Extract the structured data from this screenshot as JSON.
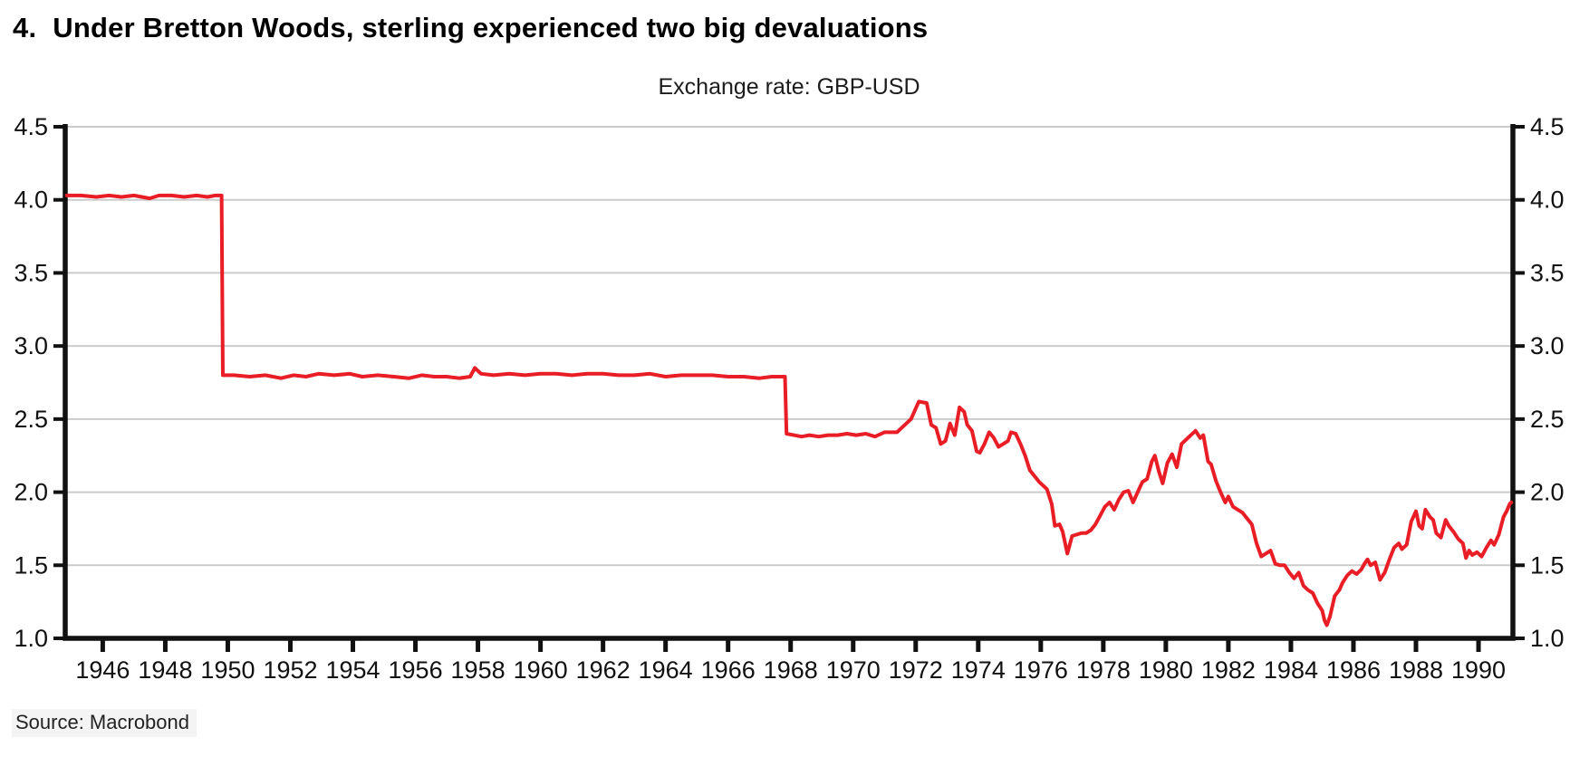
{
  "page": {
    "title_number": "4.",
    "title_text": "Under Bretton Woods, sterling experienced two big devaluations",
    "source": "Source: Macrobond"
  },
  "chart_data": {
    "type": "line",
    "title": "Exchange rate: GBP-USD",
    "xlabel": "",
    "ylabel": "",
    "xlim": [
      1944.8,
      1991.1
    ],
    "ylim": [
      1.0,
      4.5
    ],
    "grid": "horizontal",
    "legend": false,
    "colors": {
      "line": "#e91d25",
      "axis": "#111111",
      "gridline": "#cbcbcb",
      "tick_text": "#111111"
    },
    "x_tick_labels": [
      "1946",
      "1948",
      "1950",
      "1952",
      "1954",
      "1956",
      "1958",
      "1960",
      "1962",
      "1964",
      "1966",
      "1968",
      "1970",
      "1972",
      "1974",
      "1976",
      "1978",
      "1980",
      "1982",
      "1984",
      "1986",
      "1988",
      "1990"
    ],
    "x_ticks": [
      1946,
      1948,
      1950,
      1952,
      1954,
      1956,
      1958,
      1960,
      1962,
      1964,
      1966,
      1968,
      1970,
      1972,
      1974,
      1976,
      1978,
      1980,
      1982,
      1984,
      1986,
      1988,
      1990
    ],
    "y_tick_labels": [
      "4.5",
      "4.0",
      "3.5",
      "3.0",
      "2.5",
      "2.0",
      "1.5",
      "1.0"
    ],
    "y_ticks": [
      4.5,
      4.0,
      3.5,
      3.0,
      2.5,
      2.0,
      1.5,
      1.0
    ],
    "series": [
      {
        "name": "GBP-USD exchange rate",
        "color": "#e91d25",
        "points": [
          [
            1944.85,
            4.03
          ],
          [
            1945.3,
            4.03
          ],
          [
            1945.8,
            4.02
          ],
          [
            1946.2,
            4.03
          ],
          [
            1946.6,
            4.02
          ],
          [
            1947.0,
            4.03
          ],
          [
            1947.5,
            4.01
          ],
          [
            1947.8,
            4.03
          ],
          [
            1948.2,
            4.03
          ],
          [
            1948.6,
            4.02
          ],
          [
            1949.0,
            4.03
          ],
          [
            1949.35,
            4.02
          ],
          [
            1949.6,
            4.03
          ],
          [
            1949.8,
            4.03
          ],
          [
            1949.84,
            2.8
          ],
          [
            1950.2,
            2.8
          ],
          [
            1950.7,
            2.79
          ],
          [
            1951.2,
            2.8
          ],
          [
            1951.7,
            2.78
          ],
          [
            1952.1,
            2.8
          ],
          [
            1952.5,
            2.79
          ],
          [
            1952.9,
            2.81
          ],
          [
            1953.4,
            2.8
          ],
          [
            1953.9,
            2.81
          ],
          [
            1954.3,
            2.79
          ],
          [
            1954.8,
            2.8
          ],
          [
            1955.3,
            2.79
          ],
          [
            1955.8,
            2.78
          ],
          [
            1956.2,
            2.8
          ],
          [
            1956.6,
            2.79
          ],
          [
            1957.0,
            2.79
          ],
          [
            1957.4,
            2.78
          ],
          [
            1957.75,
            2.79
          ],
          [
            1957.9,
            2.85
          ],
          [
            1958.1,
            2.81
          ],
          [
            1958.5,
            2.8
          ],
          [
            1959.0,
            2.81
          ],
          [
            1959.5,
            2.8
          ],
          [
            1960.0,
            2.81
          ],
          [
            1960.5,
            2.81
          ],
          [
            1961.0,
            2.8
          ],
          [
            1961.5,
            2.81
          ],
          [
            1962.0,
            2.81
          ],
          [
            1962.5,
            2.8
          ],
          [
            1963.0,
            2.8
          ],
          [
            1963.5,
            2.81
          ],
          [
            1964.0,
            2.79
          ],
          [
            1964.5,
            2.8
          ],
          [
            1965.0,
            2.8
          ],
          [
            1965.5,
            2.8
          ],
          [
            1966.0,
            2.79
          ],
          [
            1966.5,
            2.79
          ],
          [
            1967.0,
            2.78
          ],
          [
            1967.4,
            2.79
          ],
          [
            1967.82,
            2.79
          ],
          [
            1967.87,
            2.4
          ],
          [
            1968.1,
            2.39
          ],
          [
            1968.35,
            2.38
          ],
          [
            1968.6,
            2.39
          ],
          [
            1968.9,
            2.38
          ],
          [
            1969.2,
            2.39
          ],
          [
            1969.5,
            2.39
          ],
          [
            1969.8,
            2.4
          ],
          [
            1970.1,
            2.39
          ],
          [
            1970.4,
            2.4
          ],
          [
            1970.7,
            2.38
          ],
          [
            1971.0,
            2.41
          ],
          [
            1971.4,
            2.41
          ],
          [
            1971.7,
            2.47
          ],
          [
            1971.85,
            2.5
          ],
          [
            1972.1,
            2.62
          ],
          [
            1972.35,
            2.61
          ],
          [
            1972.5,
            2.46
          ],
          [
            1972.65,
            2.44
          ],
          [
            1972.8,
            2.33
          ],
          [
            1972.95,
            2.35
          ],
          [
            1973.1,
            2.47
          ],
          [
            1973.25,
            2.39
          ],
          [
            1973.4,
            2.58
          ],
          [
            1973.55,
            2.55
          ],
          [
            1973.65,
            2.46
          ],
          [
            1973.8,
            2.42
          ],
          [
            1973.95,
            2.28
          ],
          [
            1974.05,
            2.27
          ],
          [
            1974.2,
            2.33
          ],
          [
            1974.35,
            2.41
          ],
          [
            1974.5,
            2.37
          ],
          [
            1974.65,
            2.31
          ],
          [
            1974.8,
            2.33
          ],
          [
            1974.95,
            2.35
          ],
          [
            1975.05,
            2.41
          ],
          [
            1975.2,
            2.4
          ],
          [
            1975.35,
            2.33
          ],
          [
            1975.5,
            2.25
          ],
          [
            1975.65,
            2.15
          ],
          [
            1975.8,
            2.11
          ],
          [
            1975.95,
            2.07
          ],
          [
            1976.1,
            2.04
          ],
          [
            1976.2,
            2.02
          ],
          [
            1976.35,
            1.92
          ],
          [
            1976.45,
            1.77
          ],
          [
            1976.6,
            1.78
          ],
          [
            1976.7,
            1.73
          ],
          [
            1976.85,
            1.58
          ],
          [
            1977.0,
            1.7
          ],
          [
            1977.15,
            1.71
          ],
          [
            1977.3,
            1.72
          ],
          [
            1977.45,
            1.72
          ],
          [
            1977.6,
            1.74
          ],
          [
            1977.75,
            1.78
          ],
          [
            1977.9,
            1.84
          ],
          [
            1978.05,
            1.9
          ],
          [
            1978.2,
            1.93
          ],
          [
            1978.35,
            1.88
          ],
          [
            1978.5,
            1.95
          ],
          [
            1978.65,
            2.0
          ],
          [
            1978.8,
            2.01
          ],
          [
            1978.95,
            1.93
          ],
          [
            1979.1,
            2.0
          ],
          [
            1979.25,
            2.07
          ],
          [
            1979.4,
            2.09
          ],
          [
            1979.55,
            2.21
          ],
          [
            1979.65,
            2.25
          ],
          [
            1979.78,
            2.14
          ],
          [
            1979.9,
            2.06
          ],
          [
            1980.05,
            2.2
          ],
          [
            1980.2,
            2.26
          ],
          [
            1980.35,
            2.17
          ],
          [
            1980.5,
            2.33
          ],
          [
            1980.65,
            2.36
          ],
          [
            1980.8,
            2.39
          ],
          [
            1980.95,
            2.42
          ],
          [
            1981.1,
            2.37
          ],
          [
            1981.2,
            2.39
          ],
          [
            1981.35,
            2.21
          ],
          [
            1981.45,
            2.19
          ],
          [
            1981.6,
            2.08
          ],
          [
            1981.75,
            2.0
          ],
          [
            1981.9,
            1.93
          ],
          [
            1982.0,
            1.97
          ],
          [
            1982.15,
            1.9
          ],
          [
            1982.3,
            1.88
          ],
          [
            1982.45,
            1.86
          ],
          [
            1982.6,
            1.82
          ],
          [
            1982.75,
            1.78
          ],
          [
            1982.9,
            1.65
          ],
          [
            1983.05,
            1.56
          ],
          [
            1983.2,
            1.58
          ],
          [
            1983.35,
            1.6
          ],
          [
            1983.5,
            1.51
          ],
          [
            1983.65,
            1.5
          ],
          [
            1983.8,
            1.5
          ],
          [
            1983.95,
            1.45
          ],
          [
            1984.1,
            1.41
          ],
          [
            1984.25,
            1.45
          ],
          [
            1984.4,
            1.36
          ],
          [
            1984.55,
            1.33
          ],
          [
            1984.7,
            1.31
          ],
          [
            1984.85,
            1.24
          ],
          [
            1985.0,
            1.19
          ],
          [
            1985.08,
            1.12
          ],
          [
            1985.15,
            1.09
          ],
          [
            1985.25,
            1.15
          ],
          [
            1985.4,
            1.29
          ],
          [
            1985.55,
            1.33
          ],
          [
            1985.65,
            1.38
          ],
          [
            1985.8,
            1.43
          ],
          [
            1985.95,
            1.46
          ],
          [
            1986.1,
            1.44
          ],
          [
            1986.25,
            1.47
          ],
          [
            1986.35,
            1.51
          ],
          [
            1986.45,
            1.54
          ],
          [
            1986.55,
            1.5
          ],
          [
            1986.7,
            1.52
          ],
          [
            1986.85,
            1.4
          ],
          [
            1987.0,
            1.45
          ],
          [
            1987.15,
            1.54
          ],
          [
            1987.3,
            1.62
          ],
          [
            1987.45,
            1.65
          ],
          [
            1987.55,
            1.61
          ],
          [
            1987.7,
            1.64
          ],
          [
            1987.85,
            1.8
          ],
          [
            1988.0,
            1.87
          ],
          [
            1988.1,
            1.77
          ],
          [
            1988.2,
            1.75
          ],
          [
            1988.3,
            1.88
          ],
          [
            1988.45,
            1.83
          ],
          [
            1988.55,
            1.81
          ],
          [
            1988.65,
            1.72
          ],
          [
            1988.8,
            1.69
          ],
          [
            1988.95,
            1.81
          ],
          [
            1989.05,
            1.77
          ],
          [
            1989.2,
            1.73
          ],
          [
            1989.35,
            1.68
          ],
          [
            1989.5,
            1.65
          ],
          [
            1989.6,
            1.55
          ],
          [
            1989.7,
            1.6
          ],
          [
            1989.8,
            1.57
          ],
          [
            1989.95,
            1.59
          ],
          [
            1990.1,
            1.56
          ],
          [
            1990.25,
            1.62
          ],
          [
            1990.4,
            1.67
          ],
          [
            1990.5,
            1.64
          ],
          [
            1990.65,
            1.71
          ],
          [
            1990.8,
            1.83
          ],
          [
            1990.9,
            1.87
          ],
          [
            1991.0,
            1.92
          ],
          [
            1991.05,
            1.93
          ]
        ]
      }
    ]
  }
}
